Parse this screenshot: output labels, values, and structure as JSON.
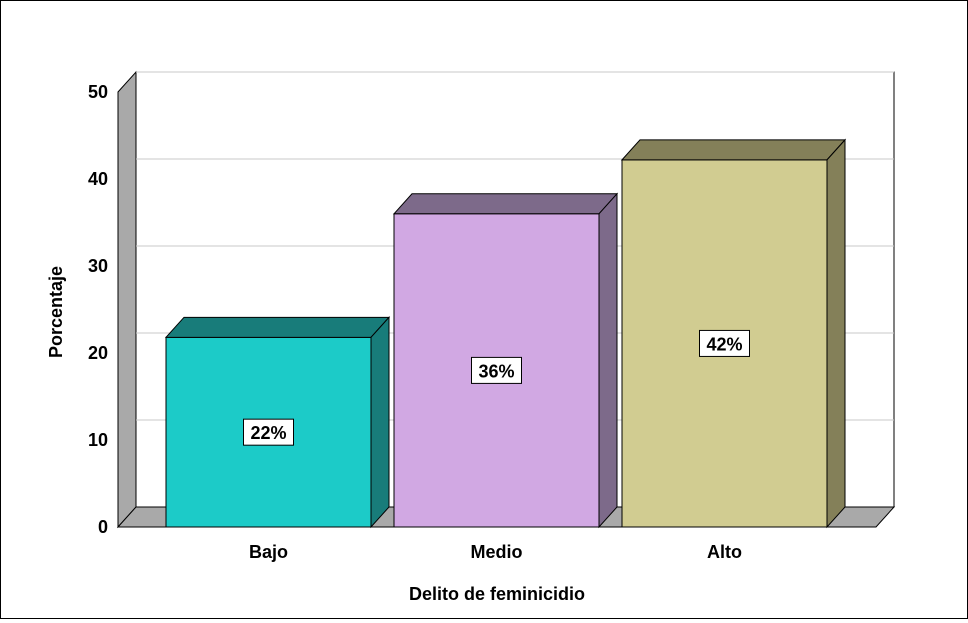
{
  "chart_data": {
    "type": "bar",
    "style": "3d",
    "title": "",
    "xlabel": "Delito de feminicidio",
    "ylabel": "Porcentaje",
    "categories": [
      "Bajo",
      "Medio",
      "Alto"
    ],
    "values": [
      21.8,
      36.0,
      42.2
    ],
    "data_labels": [
      "22%",
      "36%",
      "42%"
    ],
    "ylim": [
      0,
      50
    ],
    "yticks": [
      "0",
      "10",
      "20",
      "30",
      "40",
      "50"
    ],
    "grid": true,
    "legend": "none"
  },
  "colors": {
    "bars": [
      "#1ccbc8",
      "#d1a8e3",
      "#d1cc91"
    ],
    "bar_tops": [
      "#187c7a",
      "#7d6a8a",
      "#848059"
    ],
    "bar_sides": [
      "#187c7a",
      "#7d6a8a",
      "#848059"
    ],
    "wall_left": "#a9a9a9",
    "floor": "#a9a9a9",
    "gridline": "#c8c8c8"
  }
}
